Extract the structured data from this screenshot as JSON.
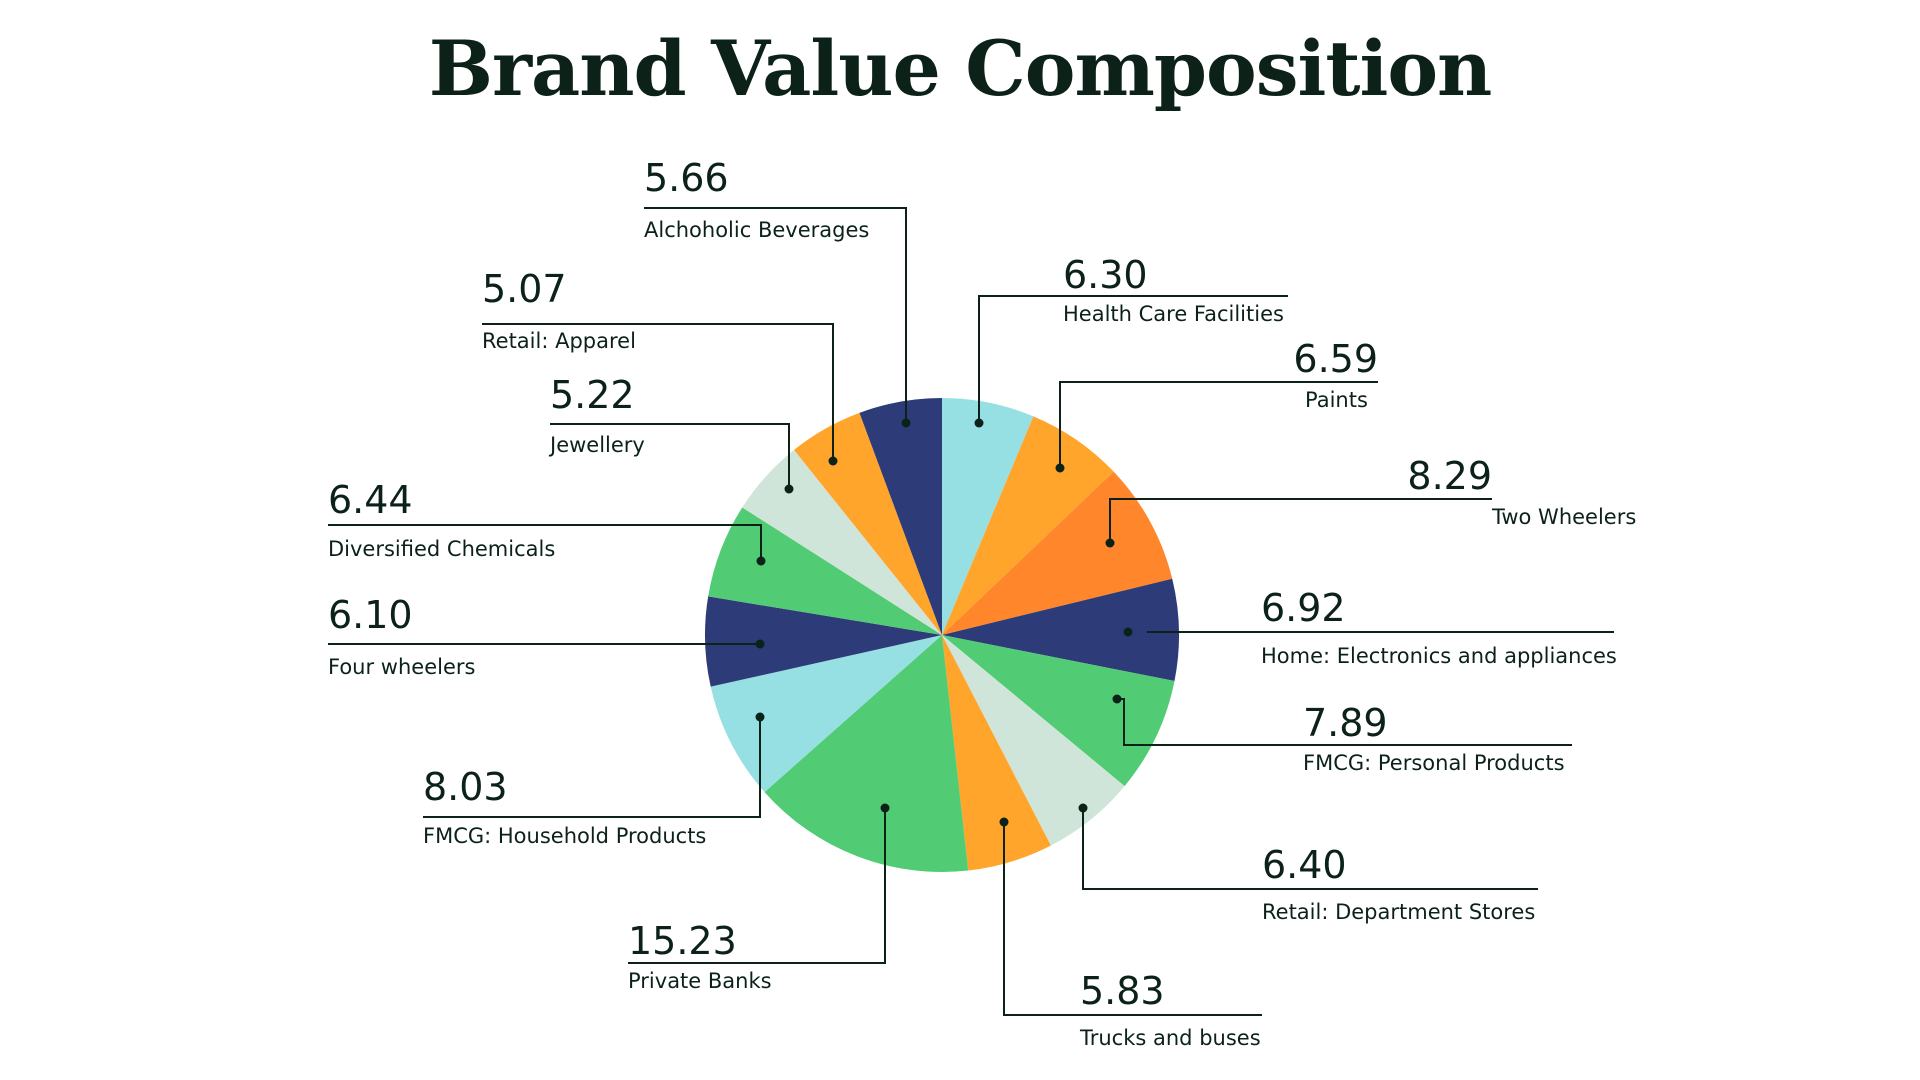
{
  "chart_data": {
    "type": "pie",
    "title": "Brand Value Composition",
    "start_angle_deg": -90,
    "direction": "clockwise",
    "slices": [
      {
        "label": "Health Care Facilities",
        "value": 6.3,
        "display": "6.30",
        "color": "#96e0e3"
      },
      {
        "label": "Paints",
        "value": 6.59,
        "display": "6.59",
        "color": "#ffa52b"
      },
      {
        "label": "Two Wheelers",
        "value": 8.29,
        "display": "8.29",
        "color": "#ff862b"
      },
      {
        "label": "Home: Electronics and appliances",
        "value": 6.92,
        "display": "6.92",
        "color": "#2d3c78"
      },
      {
        "label": "FMCG: Personal Products",
        "value": 7.89,
        "display": "7.89",
        "color": "#52cc74"
      },
      {
        "label": "Retail: Department Stores",
        "value": 6.4,
        "display": "6.40",
        "color": "#d0e5d9"
      },
      {
        "label": "Trucks and buses",
        "value": 5.83,
        "display": "5.83",
        "color": "#ffa52b"
      },
      {
        "label": "Private Banks",
        "value": 15.23,
        "display": "15.23",
        "color": "#52cc74"
      },
      {
        "label": "FMCG: Household Products",
        "value": 8.03,
        "display": "8.03",
        "color": "#96e0e3"
      },
      {
        "label": "Four wheelers",
        "value": 6.1,
        "display": "6.10",
        "color": "#2d3c78"
      },
      {
        "label": "Diversified Chemicals",
        "value": 6.44,
        "display": "6.44",
        "color": "#52cc74"
      },
      {
        "label": "Jewellery",
        "value": 5.22,
        "display": "5.22",
        "color": "#d0e5d9"
      },
      {
        "label": "Retail: Apparel",
        "value": 5.07,
        "display": "5.07",
        "color": "#ffa52b"
      },
      {
        "label": "Alchoholic Beverages",
        "value": 5.66,
        "display": "5.66",
        "color": "#2d3c78"
      }
    ],
    "text_color": "#0c2219"
  }
}
